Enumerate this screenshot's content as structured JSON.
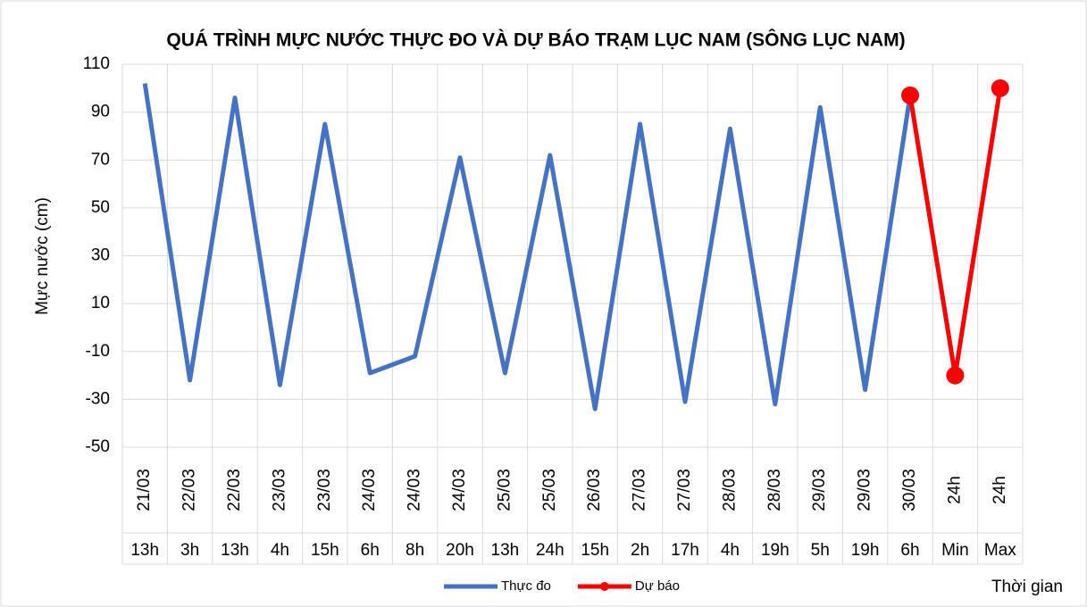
{
  "chart_data": {
    "type": "line",
    "title": "QUÁ TRÌNH MỰC NƯỚC THỰC ĐO VÀ DỰ BÁO TRẠM LỤC NAM (SÔNG LỤC NAM)",
    "y_label": "Mực nước (cm)",
    "x_label": "Thời gian",
    "categories": [
      [
        "21/03",
        "13h"
      ],
      [
        "22/03",
        "3h"
      ],
      [
        "22/03",
        "13h"
      ],
      [
        "23/03",
        "4h"
      ],
      [
        "23/03",
        "15h"
      ],
      [
        "24/03",
        "6h"
      ],
      [
        "24/03",
        "8h"
      ],
      [
        "24/03",
        "20h"
      ],
      [
        "25/03",
        "13h"
      ],
      [
        "25/03",
        "24h"
      ],
      [
        "26/03",
        "15h"
      ],
      [
        "27/03",
        "2h"
      ],
      [
        "27/03",
        "17h"
      ],
      [
        "28/03",
        "4h"
      ],
      [
        "28/03",
        "19h"
      ],
      [
        "29/03",
        "5h"
      ],
      [
        "29/03",
        "19h"
      ],
      [
        "30/03",
        "6h"
      ],
      [
        "24h",
        "Min"
      ],
      [
        "24h",
        "Max"
      ]
    ],
    "series": [
      {
        "name": "Thực đo",
        "color": "#4472c4",
        "markers": false,
        "values": [
          102,
          -22,
          96,
          -24,
          85,
          -19,
          -12,
          71,
          -19,
          72,
          -34,
          85,
          -31,
          83,
          -32,
          92,
          -26,
          97,
          null,
          null
        ]
      },
      {
        "name": "Dự báo",
        "color": "#ff0000",
        "markers": true,
        "values": [
          null,
          null,
          null,
          null,
          null,
          null,
          null,
          null,
          null,
          null,
          null,
          null,
          null,
          null,
          null,
          null,
          null,
          97,
          -20,
          100
        ]
      }
    ],
    "ylim": [
      -50,
      110
    ],
    "yticks": [
      -50,
      -30,
      -10,
      10,
      30,
      50,
      70,
      90,
      110
    ],
    "grid": true,
    "legend": "bottom"
  }
}
